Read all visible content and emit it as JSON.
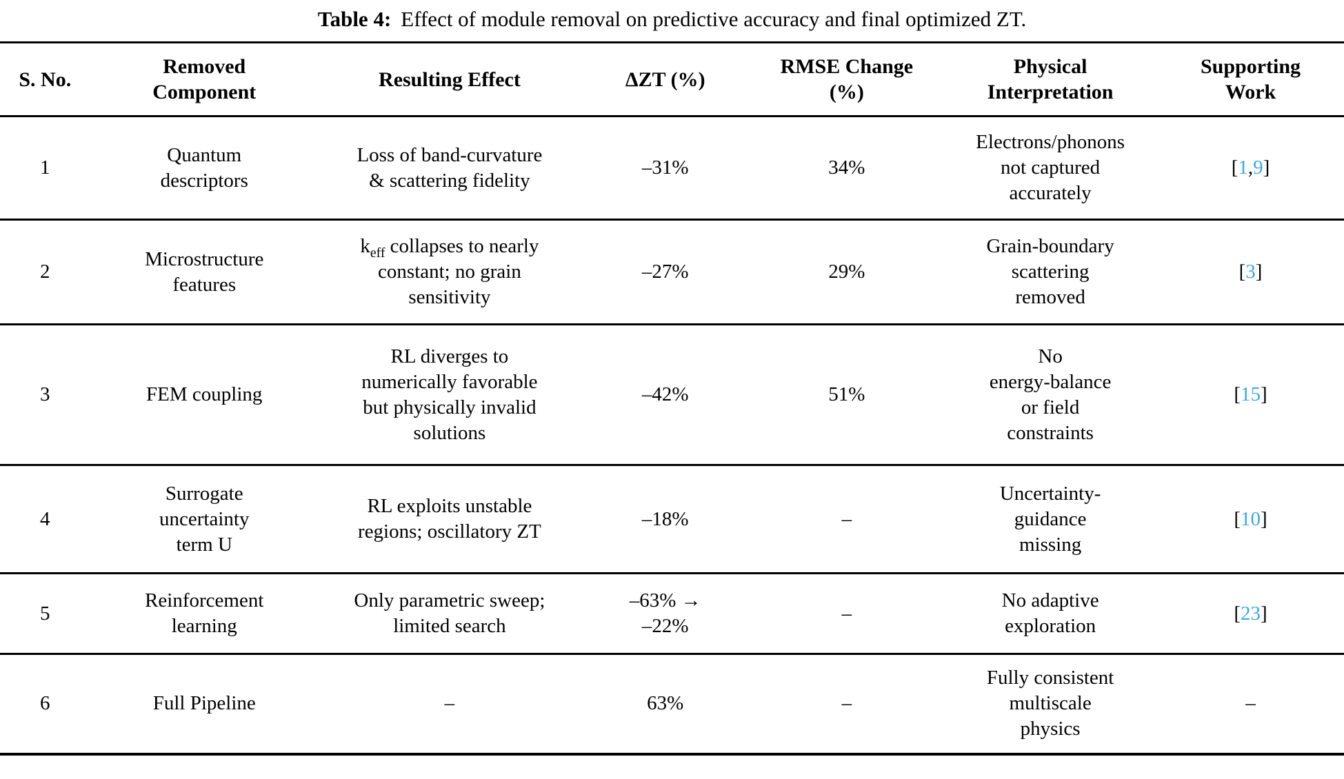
{
  "caption": {
    "label": "Table 4:",
    "text": "Effect of module removal on predictive accuracy and final optimized ZT."
  },
  "colors": {
    "citation": "#3EA7DF",
    "text": "#000000",
    "rule": "#000000"
  },
  "table": {
    "columns": [
      {
        "key": "sno",
        "label": "S. No."
      },
      {
        "key": "removed",
        "label": "Removed\nComponent"
      },
      {
        "key": "effect",
        "label": "Resulting Effect"
      },
      {
        "key": "dzt",
        "label": "ΔZT (%)"
      },
      {
        "key": "rmse",
        "label": "RMSE Change\n(%)"
      },
      {
        "key": "physical",
        "label": "Physical\nInterpretation"
      },
      {
        "key": "work",
        "label": "Supporting\nWork"
      }
    ],
    "rows": [
      {
        "sno": "1",
        "removed": "Quantum\ndescriptors",
        "effect": "Loss of band-curvature\n& scattering fidelity",
        "dzt": "–31%",
        "rmse": "34%",
        "physical": "Electrons/phonons\nnot captured\naccurately",
        "work": [
          "[",
          {
            "t": "1",
            "s": "link"
          },
          ",",
          {
            "t": "9",
            "s": "link"
          },
          "]"
        ]
      },
      {
        "sno": "2",
        "removed": "Microstructure\nfeatures",
        "effect": [
          "k",
          {
            "t": "eff",
            "s": "sub"
          },
          " collapses to nearly\nconstant; no grain\nsensitivity"
        ],
        "dzt": "–27%",
        "rmse": "29%",
        "physical": "Grain-boundary\nscattering\nremoved",
        "work": [
          "[",
          {
            "t": "3",
            "s": "link"
          },
          "]"
        ]
      },
      {
        "sno": "3",
        "removed": "FEM coupling",
        "effect": "RL diverges to\nnumerically favorable\nbut physically invalid\nsolutions",
        "dzt": "–42%",
        "rmse": "51%",
        "physical": "No\nenergy-balance\nor field\nconstraints",
        "work": [
          "[",
          {
            "t": "15",
            "s": "link"
          },
          "]"
        ]
      },
      {
        "sno": "4",
        "removed": "Surrogate\nuncertainty\nterm U",
        "effect": "RL exploits unstable\nregions; oscillatory ZT",
        "dzt": "–18%",
        "rmse": "–",
        "physical": "Uncertainty-\nguidance\nmissing",
        "work": [
          "[",
          {
            "t": "10",
            "s": "link"
          },
          "]"
        ]
      },
      {
        "sno": "5",
        "removed": "Reinforcement\nlearning",
        "effect": "Only parametric sweep;\nlimited search",
        "dzt": "–63% →\n–22%",
        "rmse": "–",
        "physical": "No adaptive\nexploration",
        "work": [
          "[",
          {
            "t": "23",
            "s": "link"
          },
          "]"
        ]
      },
      {
        "sno": "6",
        "removed": "Full Pipeline",
        "effect": "–",
        "dzt": "63%",
        "rmse": "–",
        "physical": "Fully consistent\nmultiscale\nphysics",
        "work": "–"
      }
    ]
  }
}
